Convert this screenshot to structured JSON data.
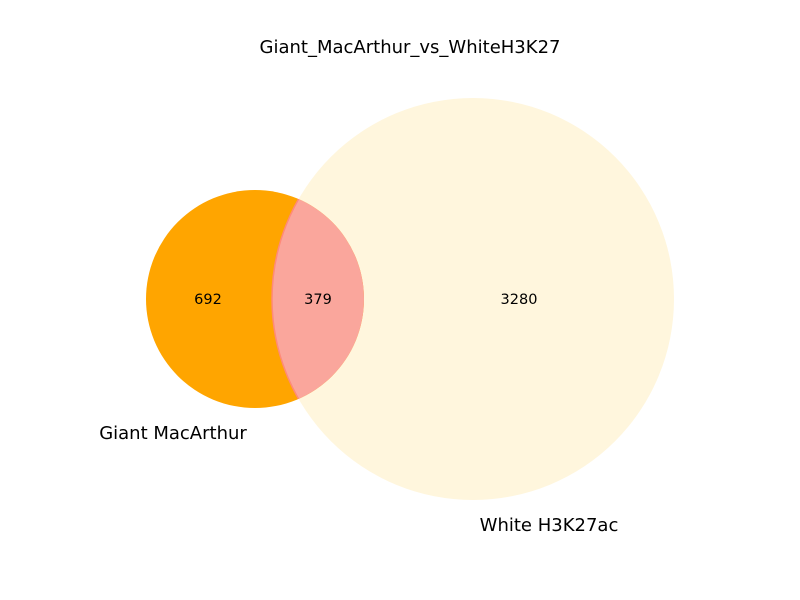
{
  "title": "Giant_MacArthur_vs_WhiteH3K27",
  "sets": [
    {
      "label": "Giant MacArthur",
      "color": "#ffa500"
    },
    {
      "label": "White H3K27ac",
      "color": "#fff6dd"
    }
  ],
  "regions": {
    "only_a": "692",
    "intersection": "379",
    "only_b": "3280"
  },
  "colors": {
    "intersection": "#faa69c",
    "intersection_edge": "#ff8a78"
  }
}
